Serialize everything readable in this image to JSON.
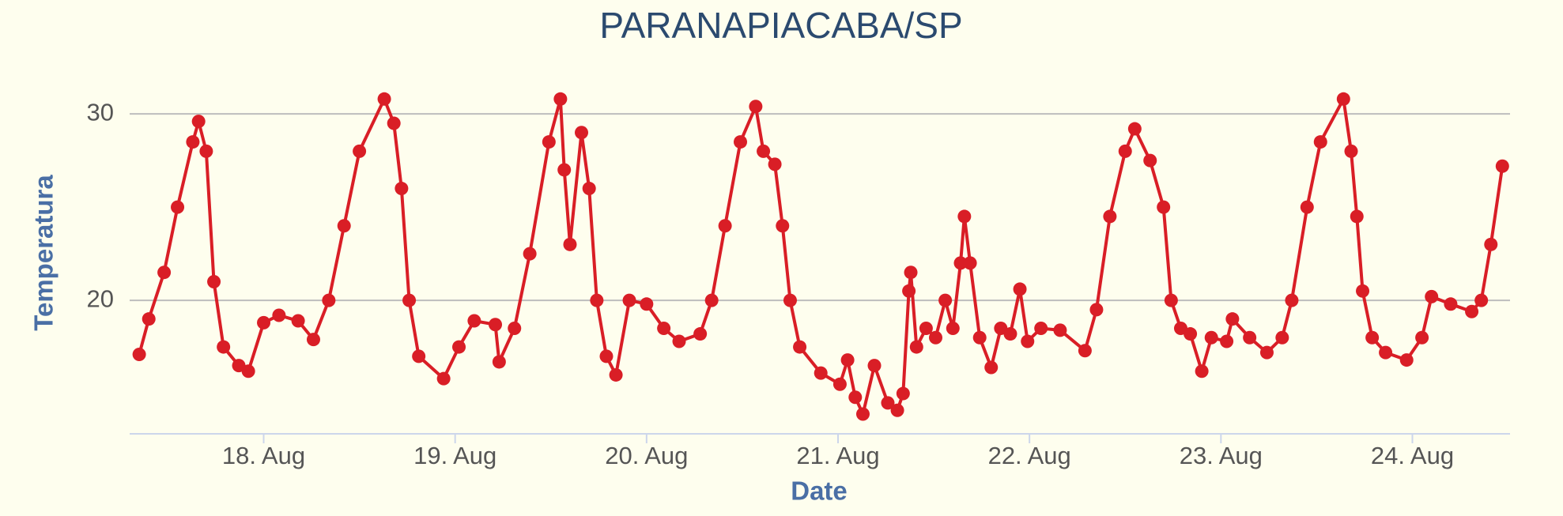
{
  "chart_data": {
    "type": "line",
    "title": "PARANAPIACABA/SP",
    "x_label": "Date",
    "y_label": "Temperatura",
    "color": "#d91e26",
    "grid": true,
    "x": [
      17.35,
      17.4,
      17.48,
      17.55,
      17.63,
      17.66,
      17.7,
      17.74,
      17.79,
      17.87,
      17.92,
      18.0,
      18.08,
      18.18,
      18.26,
      18.34,
      18.42,
      18.5,
      18.63,
      18.68,
      18.72,
      18.76,
      18.81,
      18.94,
      19.02,
      19.1,
      19.21,
      19.23,
      19.31,
      19.39,
      19.49,
      19.55,
      19.57,
      19.6,
      19.66,
      19.7,
      19.74,
      19.79,
      19.84,
      19.91,
      20.0,
      20.09,
      20.17,
      20.28,
      20.34,
      20.41,
      20.49,
      20.57,
      20.61,
      20.67,
      20.71,
      20.75,
      20.8,
      20.91,
      21.01,
      21.05,
      21.09,
      21.13,
      21.19,
      21.26,
      21.31,
      21.34,
      21.37,
      21.38,
      21.41,
      21.46,
      21.51,
      21.56,
      21.6,
      21.64,
      21.66,
      21.69,
      21.74,
      21.8,
      21.85,
      21.9,
      21.95,
      21.99,
      22.06,
      22.16,
      22.29,
      22.35,
      22.42,
      22.5,
      22.55,
      22.63,
      22.7,
      22.74,
      22.79,
      22.84,
      22.9,
      22.95,
      23.03,
      23.06,
      23.15,
      23.24,
      23.32,
      23.37,
      23.45,
      23.52,
      23.64,
      23.68,
      23.71,
      23.74,
      23.79,
      23.86,
      23.97,
      24.05,
      24.1,
      24.2,
      24.31,
      24.36,
      24.41,
      24.47
    ],
    "values": [
      17.1,
      19,
      21.5,
      25,
      28.5,
      29.6,
      28,
      21,
      17.5,
      16.5,
      16.2,
      18.8,
      19.2,
      18.9,
      17.9,
      20,
      24,
      28,
      30.8,
      29.5,
      26,
      20,
      17,
      15.8,
      17.5,
      18.9,
      18.7,
      16.7,
      18.5,
      22.5,
      28.5,
      30.8,
      27,
      23,
      29,
      26,
      20,
      17,
      16,
      20,
      19.8,
      18.5,
      17.8,
      18.2,
      20,
      24,
      28.5,
      30.4,
      28,
      27.3,
      24,
      20,
      17.5,
      16.1,
      15.5,
      16.8,
      14.8,
      13.9,
      16.5,
      14.5,
      14.1,
      15,
      20.5,
      21.5,
      17.5,
      18.5,
      18,
      20,
      18.5,
      22,
      24.5,
      22,
      18,
      16.4,
      18.5,
      18.2,
      20.6,
      17.8,
      18.5,
      18.4,
      17.3,
      19.5,
      24.5,
      28,
      29.2,
      27.5,
      25,
      20,
      18.5,
      18.2,
      16.2,
      18,
      17.8,
      19,
      18,
      17.2,
      18,
      20,
      25,
      28.5,
      30.8,
      28,
      24.5,
      20.5,
      18,
      17.2,
      16.8,
      18,
      20.2,
      19.8,
      19.4,
      20,
      23,
      27.2
    ],
    "xlim": [
      17.3,
      24.51
    ],
    "xticks": [
      {
        "value": 18,
        "label": "18. Aug"
      },
      {
        "value": 19,
        "label": "19. Aug"
      },
      {
        "value": 20,
        "label": "20. Aug"
      },
      {
        "value": 21,
        "label": "21. Aug"
      },
      {
        "value": 22,
        "label": "22. Aug"
      },
      {
        "value": 23,
        "label": "23. Aug"
      },
      {
        "value": 24,
        "label": "24. Aug"
      }
    ],
    "ylim": [
      12.84,
      32
    ],
    "yticks": [
      20,
      30
    ]
  }
}
